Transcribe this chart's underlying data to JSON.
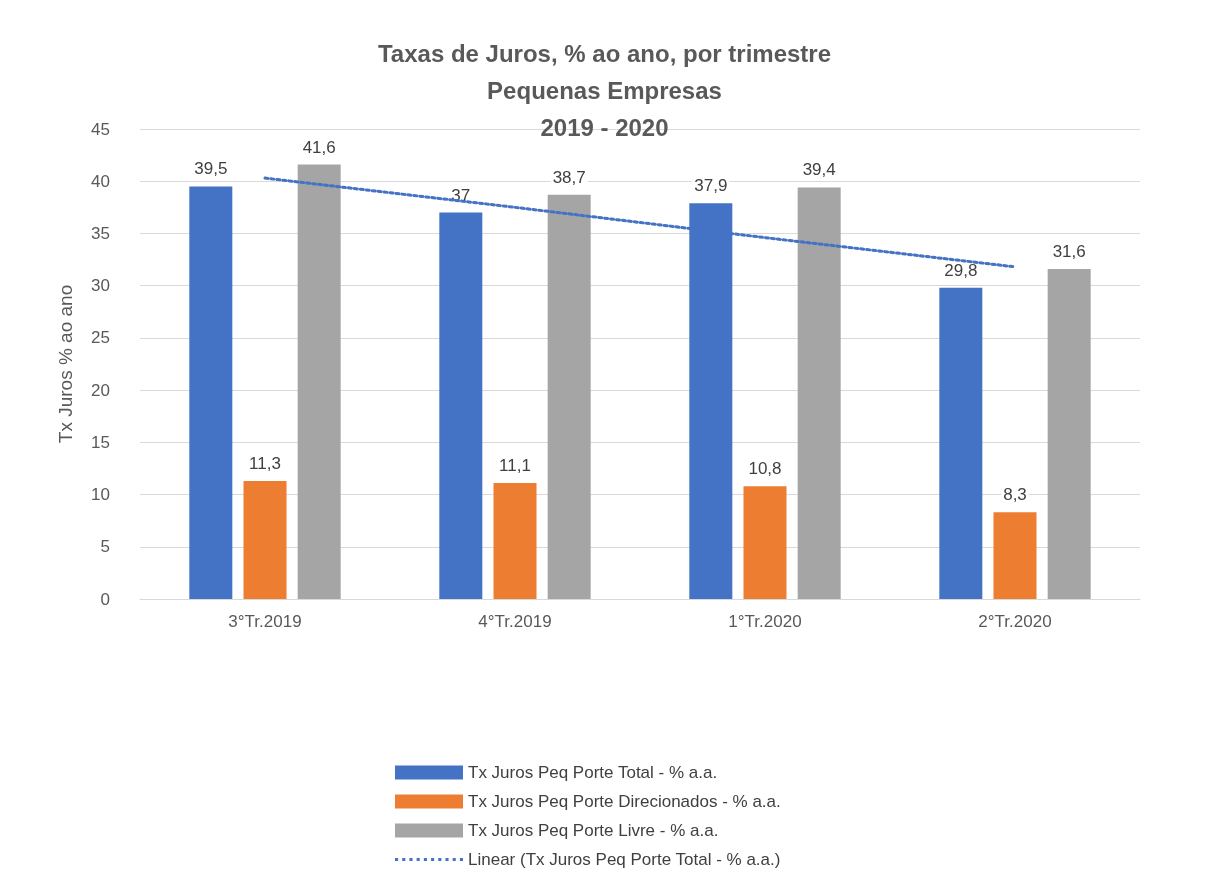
{
  "chart_data": {
    "type": "bar",
    "title": "Taxas de Juros, % ao ano, por trimestre\nPequenas Empresas\n2019 - 2020",
    "ylabel": "Tx Juros % ao ano",
    "categories": [
      "3°Tr.2019",
      "4°Tr.2019",
      "1°Tr.2020",
      "2°Tr.2020"
    ],
    "series": [
      {
        "name": "Tx Juros Peq Porte Total - % a.a.",
        "color": "#4472c4",
        "values": [
          39.5,
          37,
          37.9,
          29.8
        ],
        "value_labels": [
          "39,5",
          "37",
          "37,9",
          "29,8"
        ]
      },
      {
        "name": "Tx Juros Peq Porte Direcionados - % a.a.",
        "color": "#ed7d31",
        "values": [
          11.3,
          11.1,
          10.8,
          8.3
        ],
        "value_labels": [
          "11,3",
          "11,1",
          "10,8",
          "8,3"
        ]
      },
      {
        "name": "Tx Juros Peq Porte Livre - % a.a.",
        "color": "#a5a5a5",
        "values": [
          41.6,
          38.7,
          39.4,
          31.6
        ],
        "value_labels": [
          "41,6",
          "38,7",
          "39,4",
          "31,6"
        ]
      },
      {
        "name": "Linear (Tx Juros Peq Porte Total - % a.a.)",
        "type": "line",
        "color": "#4472c4",
        "line_style": "dotted",
        "marker": "none",
        "values": [
          40.3,
          37.5,
          34.6,
          31.8
        ]
      }
    ],
    "ylim": [
      0,
      45
    ],
    "yticks": [
      0,
      5,
      10,
      15,
      20,
      25,
      30,
      35,
      40,
      45
    ],
    "grid": "y",
    "legend": "bottom"
  }
}
